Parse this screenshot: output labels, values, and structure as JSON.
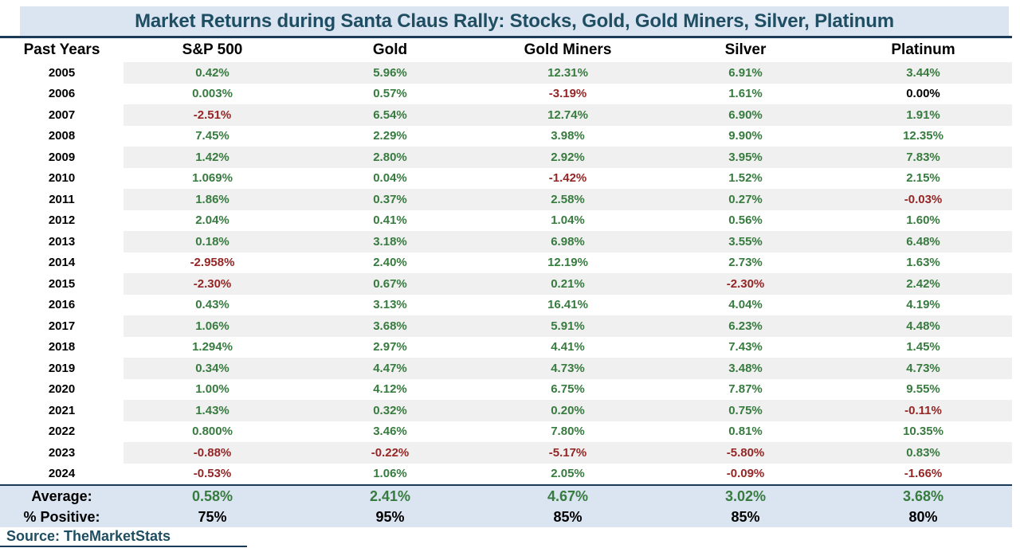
{
  "title": "Market Returns during Santa Claus Rally: Stocks, Gold, Gold Miners, Silver, Platinum",
  "columns": [
    "Past Years",
    "S&P 500",
    "Gold",
    "Gold Miners",
    "Silver",
    "Platinum"
  ],
  "rows": [
    {
      "year": "2005",
      "values": [
        "0.42%",
        "5.96%",
        "12.31%",
        "6.91%",
        "3.44%"
      ]
    },
    {
      "year": "2006",
      "values": [
        "0.003%",
        "0.57%",
        "-3.19%",
        "1.61%",
        "0.00%"
      ]
    },
    {
      "year": "2007",
      "values": [
        "-2.51%",
        "6.54%",
        "12.74%",
        "6.90%",
        "1.91%"
      ]
    },
    {
      "year": "2008",
      "values": [
        "7.45%",
        "2.29%",
        "3.98%",
        "9.90%",
        "12.35%"
      ]
    },
    {
      "year": "2009",
      "values": [
        "1.42%",
        "2.80%",
        "2.92%",
        "3.95%",
        "7.83%"
      ]
    },
    {
      "year": "2010",
      "values": [
        "1.069%",
        "0.04%",
        "-1.42%",
        "1.52%",
        "2.15%"
      ]
    },
    {
      "year": "2011",
      "values": [
        "1.86%",
        "0.37%",
        "2.58%",
        "0.27%",
        "-0.03%"
      ]
    },
    {
      "year": "2012",
      "values": [
        "2.04%",
        "0.41%",
        "1.04%",
        "0.56%",
        "1.60%"
      ]
    },
    {
      "year": "2013",
      "values": [
        "0.18%",
        "3.18%",
        "6.98%",
        "3.55%",
        "6.48%"
      ]
    },
    {
      "year": "2014",
      "values": [
        "-2.958%",
        "2.40%",
        "12.19%",
        "2.73%",
        "1.63%"
      ]
    },
    {
      "year": "2015",
      "values": [
        "-2.30%",
        "0.67%",
        "0.21%",
        "-2.30%",
        "2.42%"
      ]
    },
    {
      "year": "2016",
      "values": [
        "0.43%",
        "3.13%",
        "16.41%",
        "4.04%",
        "4.19%"
      ]
    },
    {
      "year": "2017",
      "values": [
        "1.06%",
        "3.68%",
        "5.91%",
        "6.23%",
        "4.48%"
      ]
    },
    {
      "year": "2018",
      "values": [
        "1.294%",
        "2.97%",
        "4.41%",
        "7.43%",
        "1.45%"
      ]
    },
    {
      "year": "2019",
      "values": [
        "0.34%",
        "4.47%",
        "4.73%",
        "3.48%",
        "4.73%"
      ]
    },
    {
      "year": "2020",
      "values": [
        "1.00%",
        "4.12%",
        "6.75%",
        "7.87%",
        "9.55%"
      ]
    },
    {
      "year": "2021",
      "values": [
        "1.43%",
        "0.32%",
        "0.20%",
        "0.75%",
        "-0.11%"
      ]
    },
    {
      "year": "2022",
      "values": [
        "0.800%",
        "3.46%",
        "7.80%",
        "0.81%",
        "10.35%"
      ]
    },
    {
      "year": "2023",
      "values": [
        "-0.88%",
        "-0.22%",
        "-5.17%",
        "-5.80%",
        "0.83%"
      ]
    },
    {
      "year": "2024",
      "values": [
        "-0.53%",
        "1.06%",
        "2.05%",
        "-0.09%",
        "-1.66%"
      ]
    }
  ],
  "summary": {
    "average_label": "Average:",
    "average_values": [
      "0.58%",
      "2.41%",
      "4.67%",
      "3.02%",
      "3.68%"
    ],
    "percent_positive_label": "% Positive:",
    "percent_positive_values": [
      "75%",
      "95%",
      "85%",
      "85%",
      "80%"
    ]
  },
  "source_text": "Source: TheMarketStats",
  "colors": {
    "band_bg": "#dbe5f1",
    "title_text": "#1f4e63",
    "divider": "#1b3a57",
    "positive": "#377b3f",
    "negative": "#942625",
    "neutral": "#000000",
    "stripe": "#f0f0f0"
  },
  "chart_data": {
    "type": "table",
    "title": "Market Returns during Santa Claus Rally: Stocks, Gold, Gold Miners, Silver, Platinum",
    "unit": "%",
    "categories": [
      "2005",
      "2006",
      "2007",
      "2008",
      "2009",
      "2010",
      "2011",
      "2012",
      "2013",
      "2014",
      "2015",
      "2016",
      "2017",
      "2018",
      "2019",
      "2020",
      "2021",
      "2022",
      "2023",
      "2024"
    ],
    "series": [
      {
        "name": "S&P 500",
        "values": [
          0.42,
          0.003,
          -2.51,
          7.45,
          1.42,
          1.069,
          1.86,
          2.04,
          0.18,
          -2.958,
          -2.3,
          0.43,
          1.06,
          1.294,
          0.34,
          1.0,
          1.43,
          0.8,
          -0.88,
          -0.53
        ]
      },
      {
        "name": "Gold",
        "values": [
          5.96,
          0.57,
          6.54,
          2.29,
          2.8,
          0.04,
          0.37,
          0.41,
          3.18,
          2.4,
          0.67,
          3.13,
          3.68,
          2.97,
          4.47,
          4.12,
          0.32,
          3.46,
          -0.22,
          1.06
        ]
      },
      {
        "name": "Gold Miners",
        "values": [
          12.31,
          -3.19,
          12.74,
          3.98,
          2.92,
          -1.42,
          2.58,
          1.04,
          6.98,
          12.19,
          0.21,
          16.41,
          5.91,
          4.41,
          4.73,
          6.75,
          0.2,
          7.8,
          -5.17,
          2.05
        ]
      },
      {
        "name": "Silver",
        "values": [
          6.91,
          1.61,
          6.9,
          9.9,
          3.95,
          1.52,
          0.27,
          0.56,
          3.55,
          2.73,
          -2.3,
          4.04,
          6.23,
          7.43,
          3.48,
          7.87,
          0.75,
          0.81,
          -5.8,
          -0.09
        ]
      },
      {
        "name": "Platinum",
        "values": [
          3.44,
          0.0,
          1.91,
          12.35,
          7.83,
          2.15,
          -0.03,
          1.6,
          6.48,
          1.63,
          2.42,
          4.19,
          4.48,
          1.45,
          4.73,
          9.55,
          -0.11,
          10.35,
          0.83,
          -1.66
        ]
      }
    ],
    "averages": [
      0.58,
      2.41,
      4.67,
      3.02,
      3.68
    ],
    "percent_positive": [
      75,
      95,
      85,
      85,
      80
    ],
    "color_coding": "positive=green, negative=red, zero=black"
  }
}
